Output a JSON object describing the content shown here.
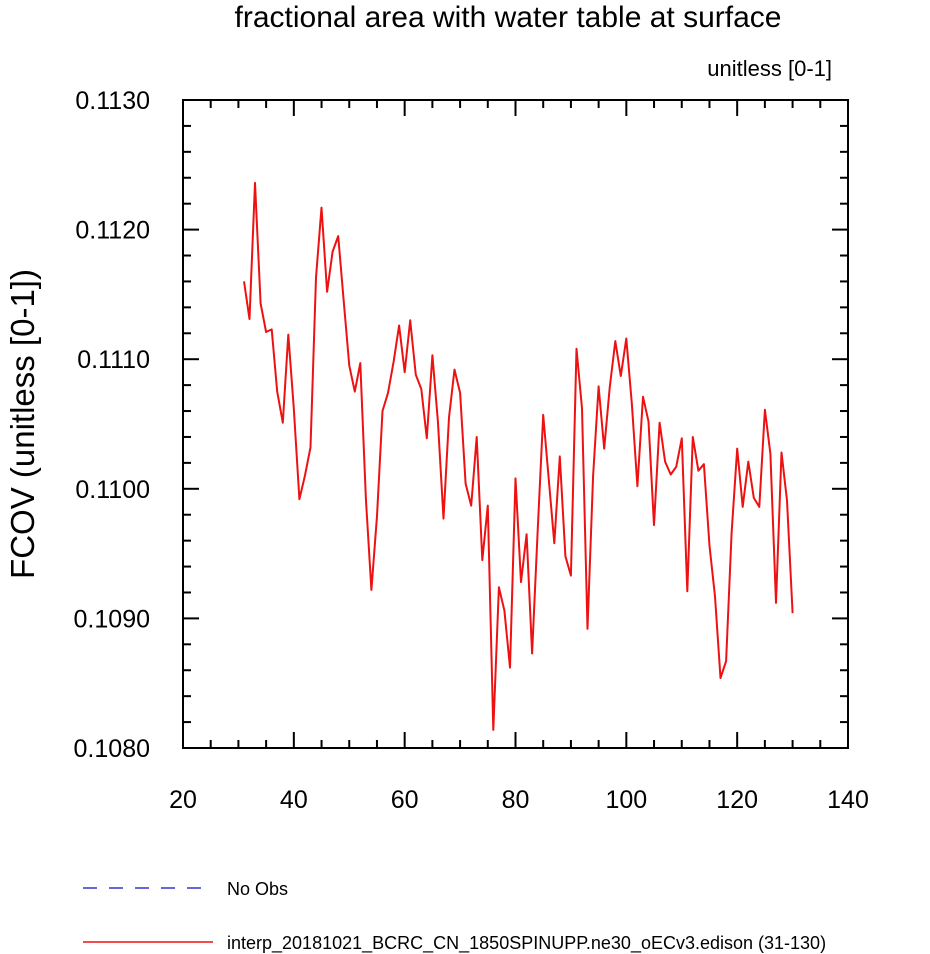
{
  "chart_data": {
    "type": "line",
    "title": "fractional area with water table at surface",
    "units_label": "unitless [0-1]",
    "ylabel": "FCOV  (unitless [0-1])",
    "xlabel": "",
    "xlim": [
      20,
      140
    ],
    "ylim": [
      0.108,
      0.113
    ],
    "x_ticks": [
      20,
      40,
      60,
      80,
      100,
      120,
      140
    ],
    "x_tick_labels": [
      "20",
      "40",
      "60",
      "80",
      "100",
      "120",
      "140"
    ],
    "y_ticks": [
      0.108,
      0.109,
      0.11,
      0.111,
      0.112,
      0.113
    ],
    "y_tick_labels": [
      "0.1080",
      "0.1090",
      "0.1100",
      "0.1110",
      "0.1120",
      "0.1130"
    ],
    "x_minor_step": 5,
    "y_minor_step": 0.0002,
    "grid": false,
    "legend_position": "bottom-left",
    "series": [
      {
        "name": "No Obs",
        "color": "#3333cc",
        "dash": "dashed",
        "x": [],
        "values": []
      },
      {
        "name": "interp_20181021_BCRC_CN_1850SPINUPP.ne30_oECv3.edison (31-130)",
        "color": "#ee1111",
        "dash": "solid",
        "x": [
          31,
          32,
          33,
          34,
          35,
          36,
          37,
          38,
          39,
          40,
          41,
          42,
          43,
          44,
          45,
          46,
          47,
          48,
          49,
          50,
          51,
          52,
          53,
          54,
          55,
          56,
          57,
          58,
          59,
          60,
          61,
          62,
          63,
          64,
          65,
          66,
          67,
          68,
          69,
          70,
          71,
          72,
          73,
          74,
          75,
          76,
          77,
          78,
          79,
          80,
          81,
          82,
          83,
          84,
          85,
          86,
          87,
          88,
          89,
          90,
          91,
          92,
          93,
          94,
          95,
          96,
          97,
          98,
          99,
          100,
          101,
          102,
          103,
          104,
          105,
          106,
          107,
          108,
          109,
          110,
          111,
          112,
          113,
          114,
          115,
          116,
          117,
          118,
          119,
          120,
          121,
          122,
          123,
          124,
          125,
          126,
          127,
          128,
          129,
          130
        ],
        "values": [
          0.1116,
          0.11131,
          0.11236,
          0.11143,
          0.11121,
          0.11123,
          0.11075,
          0.11051,
          0.11119,
          0.11062,
          0.10992,
          0.1101,
          0.11032,
          0.11163,
          0.11217,
          0.11152,
          0.11183,
          0.11195,
          0.11145,
          0.11095,
          0.11075,
          0.11097,
          0.10992,
          0.10922,
          0.10979,
          0.1106,
          0.11074,
          0.11098,
          0.11126,
          0.1109,
          0.1113,
          0.11088,
          0.11077,
          0.11039,
          0.11103,
          0.11052,
          0.10977,
          0.11055,
          0.11092,
          0.11074,
          0.11004,
          0.10987,
          0.1104,
          0.10945,
          0.10987,
          0.10814,
          0.10924,
          0.10906,
          0.10862,
          0.11008,
          0.10928,
          0.10965,
          0.10873,
          0.10968,
          0.11057,
          0.11007,
          0.10958,
          0.11025,
          0.10948,
          0.10933,
          0.11108,
          0.11062,
          0.10892,
          0.1101,
          0.11079,
          0.11031,
          0.11078,
          0.11114,
          0.11087,
          0.11116,
          0.11065,
          0.11002,
          0.11071,
          0.11052,
          0.10972,
          0.11051,
          0.11021,
          0.11011,
          0.11017,
          0.11039,
          0.10921,
          0.1104,
          0.11014,
          0.11019,
          0.10956,
          0.10917,
          0.10854,
          0.10867,
          0.10966,
          0.11031,
          0.10986,
          0.11021,
          0.10993,
          0.10986,
          0.11061,
          0.11027,
          0.10912,
          0.11028,
          0.10991,
          0.10904
        ]
      }
    ]
  }
}
